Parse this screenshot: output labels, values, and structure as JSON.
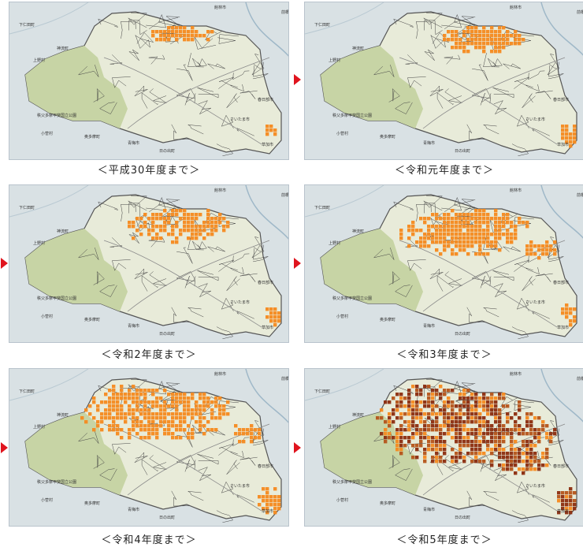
{
  "panels": [
    {
      "caption": "＜平成30年度まで＞",
      "level": 1
    },
    {
      "caption": "＜令和元年度まで＞",
      "level": 2
    },
    {
      "caption": "＜令和2年度まで＞",
      "level": 3
    },
    {
      "caption": "＜令和3年度まで＞",
      "level": 4
    },
    {
      "caption": "＜令和4年度まで＞",
      "level": 5
    },
    {
      "caption": "＜令和5年度まで＞",
      "level": 6
    }
  ],
  "map_labels": {
    "north1": "館林市",
    "north2": "前橋市",
    "kanjin": "下仁田町",
    "ueno": "上野村",
    "kanna": "神流町",
    "chichibu_park": "秩父多摩甲斐国立公園",
    "kosuge": "小菅村",
    "okutama": "奥多摩町",
    "ome": "青梅市",
    "hinode": "日の出町",
    "saitama": "さいたま市",
    "kasukabe": "春日部市",
    "soka": "草加市"
  },
  "colors": {
    "orange": "#f58a1f",
    "darkred": "#8c2d0f",
    "brown": "#b5541a",
    "land": "#e8ebd9",
    "mountain": "#c7d4a5",
    "water": "#c9d8e3",
    "arrow": "#e0141e"
  }
}
